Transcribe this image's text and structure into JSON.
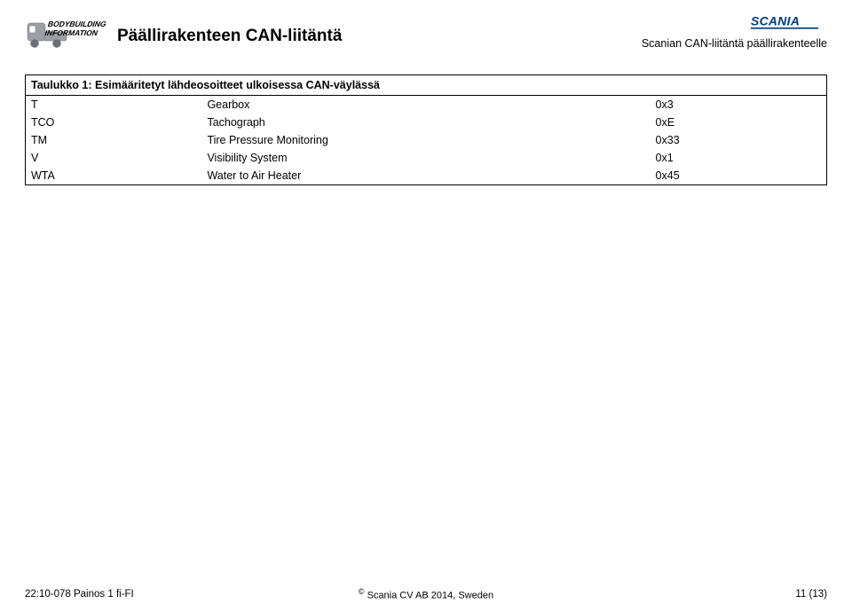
{
  "header": {
    "title": "Päällirakenteen CAN-liitäntä",
    "subhead": "Scanian CAN-liitäntä päällirakenteelle",
    "logo_left_text_top": "BODYBUILDING",
    "logo_left_text_bottom": "INFORMATION",
    "scania_brand": "SCANIA"
  },
  "table": {
    "caption": "Taulukko 1: Esimääritetyt lähdeosoitteet ulkoisessa CAN-väylässä",
    "rows": [
      {
        "a": "T",
        "b": "Gearbox",
        "c": "0x3"
      },
      {
        "a": "TCO",
        "b": "Tachograph",
        "c": "0xE"
      },
      {
        "a": "TM",
        "b": "Tire Pressure Monitoring",
        "c": "0x33"
      },
      {
        "a": "V",
        "b": "Visibility System",
        "c": "0x1"
      },
      {
        "a": "WTA",
        "b": "Water to Air Heater",
        "c": "0x45"
      }
    ]
  },
  "footer": {
    "left": "22:10-078 Painos 1 fi-FI",
    "right": "11 (13)",
    "center_prefix": "©",
    "center": " Scania CV AB 2014, Sweden"
  },
  "colors": {
    "scania_blue": "#003a78",
    "truck_gray": "#9aa0a6",
    "text": "#000000",
    "border": "#000000"
  }
}
